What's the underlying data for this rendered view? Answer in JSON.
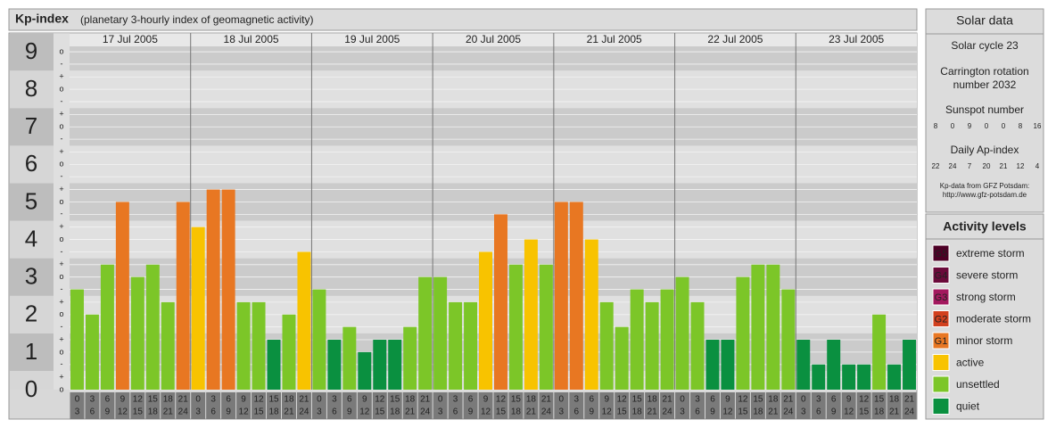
{
  "chart_data": {
    "type": "bar",
    "title": "Kp-index",
    "subtitle": "(planetary 3-hourly index of geomagnetic activity)",
    "ylim": [
      0,
      9.5
    ],
    "yticks": [
      0,
      1,
      2,
      3,
      4,
      5,
      6,
      7,
      8,
      9
    ],
    "minor_yticks": [
      {
        "value": 0,
        "label": "o"
      },
      {
        "value": 0.33,
        "label": "+"
      },
      {
        "value": 0.67,
        "label": "-"
      },
      {
        "value": 1,
        "label": "o"
      },
      {
        "value": 1.33,
        "label": "+"
      },
      {
        "value": 1.67,
        "label": "-"
      },
      {
        "value": 2,
        "label": "o"
      },
      {
        "value": 2.33,
        "label": "+"
      },
      {
        "value": 2.67,
        "label": "-"
      },
      {
        "value": 3,
        "label": "o"
      },
      {
        "value": 3.33,
        "label": "+"
      },
      {
        "value": 3.67,
        "label": "-"
      },
      {
        "value": 4,
        "label": "o"
      },
      {
        "value": 4.33,
        "label": "+"
      },
      {
        "value": 4.67,
        "label": "-"
      },
      {
        "value": 5,
        "label": "o"
      },
      {
        "value": 5.33,
        "label": "+"
      },
      {
        "value": 5.67,
        "label": "-"
      },
      {
        "value": 6,
        "label": "o"
      },
      {
        "value": 6.33,
        "label": "+"
      },
      {
        "value": 6.67,
        "label": "-"
      },
      {
        "value": 7,
        "label": "o"
      },
      {
        "value": 7.33,
        "label": "+"
      },
      {
        "value": 7.67,
        "label": "-"
      },
      {
        "value": 8,
        "label": "o"
      },
      {
        "value": 8.33,
        "label": "+"
      },
      {
        "value": 8.67,
        "label": "-"
      },
      {
        "value": 9,
        "label": "o"
      }
    ],
    "grid": true,
    "hours": [
      [
        "0",
        "3"
      ],
      [
        "3",
        "6"
      ],
      [
        "6",
        "9"
      ],
      [
        "9",
        "12"
      ],
      [
        "12",
        "15"
      ],
      [
        "15",
        "18"
      ],
      [
        "18",
        "21"
      ],
      [
        "21",
        "24"
      ]
    ],
    "days": [
      {
        "date": "17 Jul 2005",
        "values": [
          2.67,
          2,
          3.33,
          5,
          3,
          3.33,
          2.33,
          5
        ],
        "colors": [
          "#7cc628",
          "#7cc628",
          "#7cc628",
          "#e87722",
          "#7cc628",
          "#7cc628",
          "#7cc628",
          "#e87722"
        ]
      },
      {
        "date": "18 Jul 2005",
        "values": [
          4.33,
          5.33,
          5.33,
          2.33,
          2.33,
          1.33,
          2,
          3.67
        ],
        "colors": [
          "#f8c300",
          "#e87722",
          "#e87722",
          "#7cc628",
          "#7cc628",
          "#0a9040",
          "#7cc628",
          "#f8c300"
        ]
      },
      {
        "date": "19 Jul 2005",
        "values": [
          2.67,
          1.33,
          1.67,
          1,
          1.33,
          1.33,
          1.67,
          3
        ],
        "colors": [
          "#7cc628",
          "#0a9040",
          "#7cc628",
          "#0a9040",
          "#0a9040",
          "#0a9040",
          "#7cc628",
          "#7cc628"
        ]
      },
      {
        "date": "20 Jul 2005",
        "values": [
          3,
          2.33,
          2.33,
          3.67,
          4.67,
          3.33,
          4,
          3.33
        ],
        "colors": [
          "#7cc628",
          "#7cc628",
          "#7cc628",
          "#f8c300",
          "#e87722",
          "#7cc628",
          "#f8c300",
          "#7cc628"
        ]
      },
      {
        "date": "21 Jul 2005",
        "values": [
          5,
          5,
          4,
          2.33,
          1.67,
          2.67,
          2.33,
          2.67
        ],
        "colors": [
          "#e87722",
          "#e87722",
          "#f8c300",
          "#7cc628",
          "#7cc628",
          "#7cc628",
          "#7cc628",
          "#7cc628"
        ]
      },
      {
        "date": "22 Jul 2005",
        "values": [
          3,
          2.33,
          1.33,
          1.33,
          3,
          3.33,
          3.33,
          2.67
        ],
        "colors": [
          "#7cc628",
          "#7cc628",
          "#0a9040",
          "#0a9040",
          "#7cc628",
          "#7cc628",
          "#7cc628",
          "#7cc628"
        ]
      },
      {
        "date": "23 Jul 2005",
        "values": [
          1.33,
          0.67,
          1.33,
          0.67,
          0.67,
          2,
          0.67,
          1.33
        ],
        "colors": [
          "#0a9040",
          "#0a9040",
          "#0a9040",
          "#0a9040",
          "#0a9040",
          "#7cc628",
          "#0a9040",
          "#0a9040"
        ]
      }
    ]
  },
  "solar": {
    "title": "Solar data",
    "cycle": "Solar cycle 23",
    "carrington": [
      "Carrington rotation",
      "number 2032"
    ],
    "sunspot_title": "Sunspot number",
    "sunspot": [
      "8",
      "0",
      "9",
      "0",
      "0",
      "8",
      "16"
    ],
    "ap_title": "Daily Ap-index",
    "ap": [
      "22",
      "24",
      "7",
      "20",
      "21",
      "12",
      "4"
    ],
    "source": [
      "Kp-data from GFZ Potsdam:",
      "http://www.gfz-potsdam.de"
    ]
  },
  "legend": {
    "title": "Activity levels",
    "items": [
      {
        "badge": "G5",
        "label": "extreme storm",
        "color": "#4d0026"
      },
      {
        "badge": "G4",
        "label": "severe storm",
        "color": "#6b0a3a"
      },
      {
        "badge": "G3",
        "label": "strong storm",
        "color": "#a3185e"
      },
      {
        "badge": "G2",
        "label": "moderate storm",
        "color": "#d2401e"
      },
      {
        "badge": "G1",
        "label": "minor storm",
        "color": "#e87722"
      },
      {
        "label": "active",
        "color": "#f8c300"
      },
      {
        "label": "unsettled",
        "color": "#7cc628"
      },
      {
        "label": "quiet",
        "color": "#0a9040"
      }
    ]
  }
}
